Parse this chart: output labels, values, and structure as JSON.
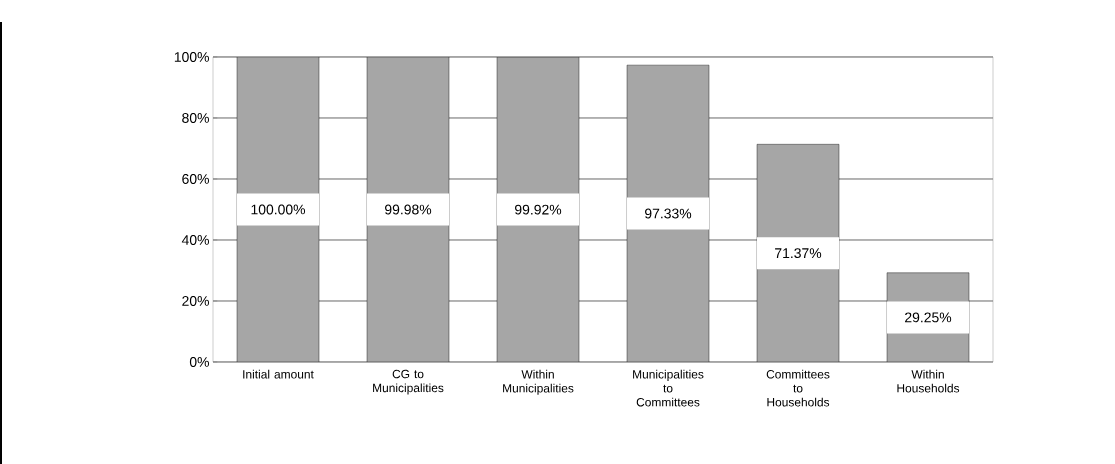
{
  "chart_data": {
    "type": "bar",
    "categories": [
      "Initial amount",
      "CG to Municipalities",
      "Within Municipalities",
      "Municipalities to Committees",
      "Committees to Households",
      "Within Households"
    ],
    "values": [
      100.0,
      99.98,
      99.92,
      97.33,
      71.37,
      29.25
    ],
    "value_labels": [
      "100.00%",
      "99.98%",
      "99.92%",
      "97.33%",
      "71.37%",
      "29.25%"
    ],
    "color": "#a6a6a6",
    "ylim": [
      0,
      100
    ],
    "yticks": [
      {
        "value": 0,
        "label": "0%"
      },
      {
        "value": 20,
        "label": "20%"
      },
      {
        "value": 40,
        "label": "40%"
      },
      {
        "value": 60,
        "label": "60%"
      },
      {
        "value": 80,
        "label": "80%"
      },
      {
        "value": 100,
        "label": "100%"
      }
    ],
    "grid": "y"
  }
}
